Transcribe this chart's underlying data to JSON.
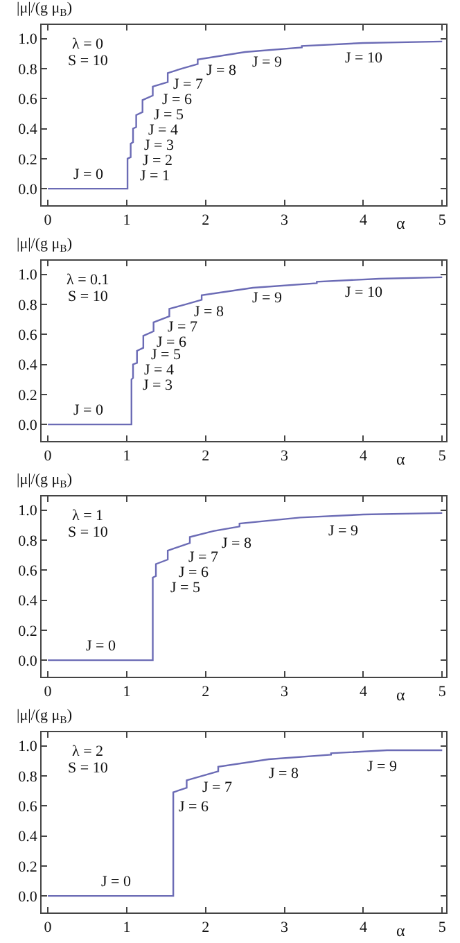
{
  "chart_data": [
    {
      "type": "line",
      "ylabel": "|μ|/(g μ$_{B}$)",
      "xlabel": "α",
      "xlim": [
        -0.08,
        5.05
      ],
      "ylim": [
        -0.11,
        1.09
      ],
      "xticks": [
        0,
        1,
        2,
        3,
        4,
        5
      ],
      "yticks": [
        {
          "value": 0,
          "label": "0.0"
        },
        {
          "value": 0.2,
          "label": "0.2"
        },
        {
          "value": 0.4,
          "label": "0.4"
        },
        {
          "value": 0.6,
          "label": "0.6"
        },
        {
          "value": 0.8,
          "label": "0.8"
        },
        {
          "value": 1.0,
          "label": "1.0"
        }
      ],
      "marker": "none",
      "line_style": "solid",
      "series": [
        {
          "color": "#6b6bb5",
          "x": [
            0,
            1.01,
            1.01,
            1.05,
            1.05,
            1.08,
            1.08,
            1.12,
            1.12,
            1.2,
            1.2,
            1.33,
            1.33,
            1.52,
            1.52,
            1.7,
            1.9,
            1.9,
            2.5,
            3.22,
            3.22,
            4,
            5
          ],
          "values": [
            0,
            0,
            0.2,
            0.21,
            0.3,
            0.31,
            0.4,
            0.41,
            0.49,
            0.51,
            0.59,
            0.62,
            0.68,
            0.71,
            0.77,
            0.8,
            0.83,
            0.86,
            0.91,
            0.94,
            0.95,
            0.97,
            0.98
          ]
        }
      ],
      "annotations": [
        "λ = 0",
        "S = 10",
        "J = 0",
        "J = 1",
        "J = 2",
        "J = 3",
        "J = 4",
        "J = 5",
        "J = 6",
        "J = 7",
        "J = 8",
        "J = 9",
        "J = 10"
      ]
    },
    {
      "type": "line",
      "ylabel": "|μ|/(g μ$_{B}$)",
      "xlabel": "α",
      "xlim": [
        -0.08,
        5.05
      ],
      "ylim": [
        -0.11,
        1.09
      ],
      "xticks": [
        0,
        1,
        2,
        3,
        4,
        5
      ],
      "yticks": [
        {
          "value": 0,
          "label": "0.0"
        },
        {
          "value": 0.2,
          "label": "0.2"
        },
        {
          "value": 0.4,
          "label": "0.4"
        },
        {
          "value": 0.6,
          "label": "0.6"
        },
        {
          "value": 0.8,
          "label": "0.8"
        },
        {
          "value": 1.0,
          "label": "1.0"
        }
      ],
      "marker": "none",
      "line_style": "solid",
      "series": [
        {
          "color": "#6b6bb5",
          "x": [
            0,
            1.06,
            1.06,
            1.08,
            1.08,
            1.13,
            1.13,
            1.21,
            1.21,
            1.34,
            1.34,
            1.54,
            1.54,
            1.75,
            1.95,
            1.95,
            2.6,
            3.41,
            3.41,
            4.2,
            5
          ],
          "values": [
            0,
            0,
            0.3,
            0.31,
            0.4,
            0.41,
            0.49,
            0.51,
            0.59,
            0.62,
            0.68,
            0.72,
            0.77,
            0.8,
            0.83,
            0.86,
            0.91,
            0.94,
            0.95,
            0.97,
            0.98
          ]
        }
      ],
      "annotations": [
        "λ = 0.1",
        "S = 10",
        "J = 0",
        "J = 3",
        "J = 4",
        "J = 5",
        "J = 6",
        "J = 7",
        "J = 8",
        "J = 9",
        "J = 10"
      ]
    },
    {
      "type": "line",
      "ylabel": "|μ|/(g μ$_{B}$)",
      "xlabel": "α",
      "xlim": [
        -0.08,
        5.05
      ],
      "ylim": [
        -0.11,
        1.09
      ],
      "xticks": [
        0,
        1,
        2,
        3,
        4,
        5
      ],
      "yticks": [
        {
          "value": 0,
          "label": "0.0"
        },
        {
          "value": 0.2,
          "label": "0.2"
        },
        {
          "value": 0.4,
          "label": "0.4"
        },
        {
          "value": 0.6,
          "label": "0.6"
        },
        {
          "value": 0.8,
          "label": "0.8"
        },
        {
          "value": 1.0,
          "label": "1.0"
        }
      ],
      "marker": "none",
      "line_style": "solid",
      "series": [
        {
          "color": "#6b6bb5",
          "x": [
            0,
            1.33,
            1.33,
            1.37,
            1.37,
            1.52,
            1.52,
            1.8,
            1.8,
            2.1,
            2.43,
            2.43,
            3.2,
            4,
            5
          ],
          "values": [
            0,
            0,
            0.55,
            0.56,
            0.64,
            0.67,
            0.73,
            0.78,
            0.82,
            0.86,
            0.89,
            0.91,
            0.95,
            0.97,
            0.98
          ]
        }
      ],
      "annotations": [
        "λ = 1",
        "S = 10",
        "J = 0",
        "J = 5",
        "J = 6",
        "J = 7",
        "J = 8",
        "J = 9"
      ]
    },
    {
      "type": "line",
      "ylabel": "|μ|/(g μ$_{B}$)",
      "xlabel": "α",
      "xlim": [
        -0.08,
        5.05
      ],
      "ylim": [
        -0.11,
        1.09
      ],
      "xticks": [
        0,
        1,
        2,
        3,
        4,
        5
      ],
      "yticks": [
        {
          "value": 0,
          "label": "0.0"
        },
        {
          "value": 0.2,
          "label": "0.2"
        },
        {
          "value": 0.4,
          "label": "0.4"
        },
        {
          "value": 0.6,
          "label": "0.6"
        },
        {
          "value": 0.8,
          "label": "0.8"
        },
        {
          "value": 1.0,
          "label": "1.0"
        }
      ],
      "marker": "none",
      "line_style": "solid",
      "series": [
        {
          "color": "#6b6bb5",
          "x": [
            0,
            1.59,
            1.59,
            1.76,
            1.76,
            2.16,
            2.16,
            2.8,
            3.59,
            3.59,
            4.3,
            5
          ],
          "values": [
            0,
            0,
            0.69,
            0.72,
            0.77,
            0.83,
            0.86,
            0.91,
            0.94,
            0.95,
            0.97,
            0.97
          ]
        }
      ],
      "annotations": [
        "λ = 2",
        "S = 10",
        "J = 0",
        "J = 6",
        "J = 7",
        "J = 8",
        "J = 9"
      ]
    }
  ]
}
